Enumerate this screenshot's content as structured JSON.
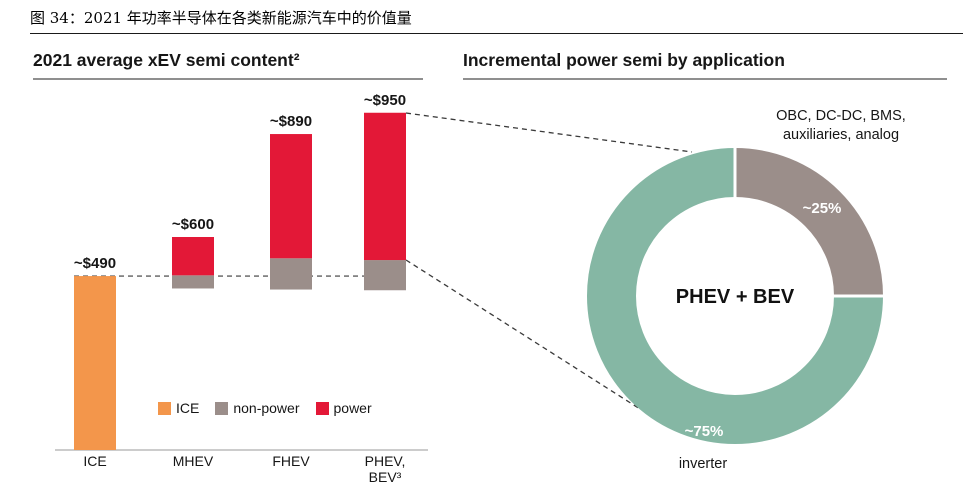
{
  "figure": {
    "title": "图 34：2021 年功率半导体在各类新能源汽车中的价值量"
  },
  "left_panel": {
    "header": "2021 average xEV semi content²"
  },
  "right_panel": {
    "header": "Incremental power semi by application"
  },
  "colors": {
    "orange": "#F3964B",
    "red": "#E31837",
    "grey": "#9B8E8A",
    "teal": "#85B7A4",
    "axis": "#999999",
    "dash": "#3a3a3a",
    "text": "#161616",
    "white": "#ffffff"
  },
  "chart_data": [
    {
      "type": "bar",
      "title": "2021 average xEV semi content",
      "categories": [
        "ICE",
        "MHEV",
        "FHEV",
        "PHEV,\nBEV³"
      ],
      "values": [
        490,
        600,
        890,
        950
      ],
      "ylim": [
        0,
        1000
      ],
      "grid": false,
      "baseline": {
        "value": 490,
        "style": "dashed"
      },
      "bars": [
        {
          "category": "ICE",
          "total_label": "~$490",
          "segments": [
            {
              "name": "ICE",
              "from": 0,
              "to": 490,
              "color_key": "orange"
            }
          ]
        },
        {
          "category": "MHEV",
          "total_label": "~$600",
          "segments": [
            {
              "name": "non-power",
              "from": 455,
              "to": 492,
              "color_key": "grey"
            },
            {
              "name": "power",
              "from": 492,
              "to": 600,
              "color_key": "red"
            }
          ]
        },
        {
          "category": "FHEV",
          "total_label": "~$890",
          "segments": [
            {
              "name": "non-power",
              "from": 452,
              "to": 540,
              "color_key": "grey"
            },
            {
              "name": "power",
              "from": 540,
              "to": 890,
              "color_key": "red"
            }
          ]
        },
        {
          "category": "PHEV, BEV³",
          "total_label": "~$950",
          "segments": [
            {
              "name": "non-power",
              "from": 450,
              "to": 535,
              "color_key": "grey"
            },
            {
              "name": "power",
              "from": 535,
              "to": 950,
              "color_key": "red"
            }
          ]
        }
      ],
      "legend": [
        {
          "label": "ICE",
          "color_key": "orange"
        },
        {
          "label": "non-power",
          "color_key": "grey"
        },
        {
          "label": "power",
          "color_key": "red"
        }
      ],
      "legend_position": "bottom"
    },
    {
      "type": "pie",
      "subtype": "donut",
      "title": "Incremental power semi by application",
      "center_label": "PHEV + BEV",
      "segments": [
        {
          "label": "OBC, DC-DC, BMS,\nauxiliaries, analog",
          "value_label": "~25%",
          "percent": 25,
          "color_key": "grey"
        },
        {
          "label": "inverter",
          "value_label": "~75%",
          "percent": 75,
          "color_key": "teal"
        }
      ]
    }
  ]
}
